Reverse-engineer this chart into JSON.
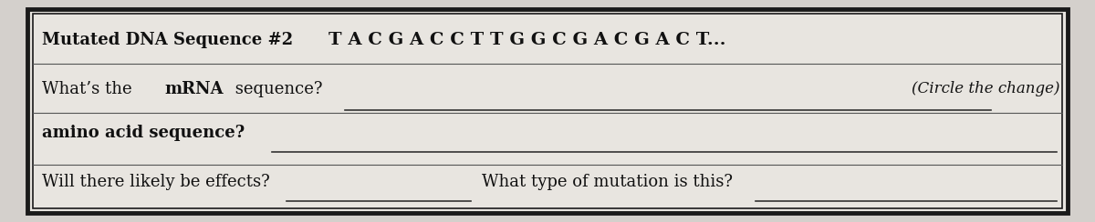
{
  "bg_color": "#d4d0cc",
  "box_color": "#e8e5e0",
  "box_edge_color": "#1a1a1a",
  "title_label": "Mutated DNA Sequence #2",
  "dna_sequence": "T A C G A C C T T G G C G A C G A C T...",
  "line1_right": "(Circle the change)",
  "line2_label": "amino acid sequence?",
  "line3_label": "Will there likely be effects?",
  "line3_mid": "What type of mutation is this?",
  "title_fontsize": 13,
  "dna_fontsize": 14,
  "body_fontsize": 13,
  "italic_fontsize": 12
}
